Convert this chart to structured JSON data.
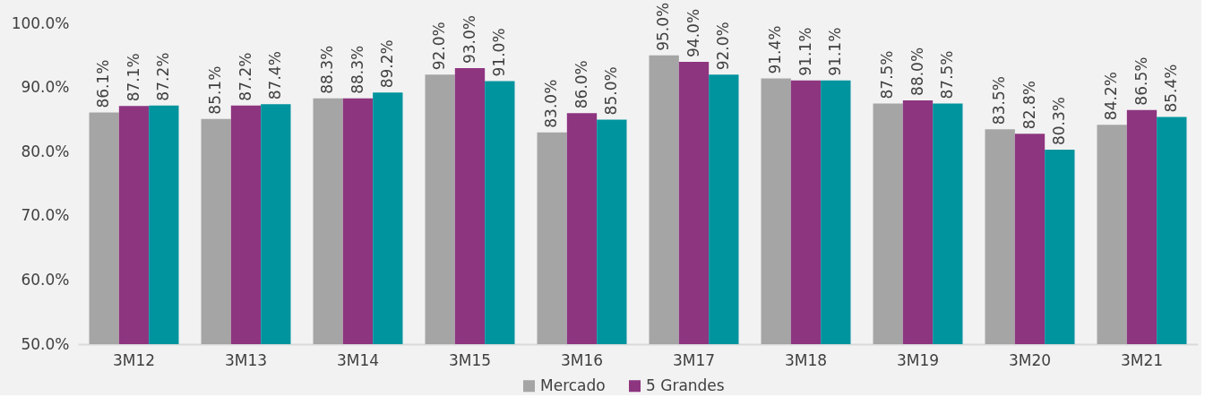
{
  "chart_data": {
    "type": "bar",
    "categories": [
      "3M12",
      "3M13",
      "3M14",
      "3M15",
      "3M16",
      "3M17",
      "3M18",
      "3M19",
      "3M20",
      "3M21"
    ],
    "series": [
      {
        "name": "Mercado",
        "color": "#a5a5a5",
        "values": [
          86.1,
          85.1,
          88.3,
          92.0,
          83.0,
          95.0,
          91.4,
          87.5,
          83.5,
          84.2
        ],
        "value_labels": [
          "86.1%",
          "85.1%",
          "88.3%",
          "92.0%",
          "83.0%",
          "95.0%",
          "91.4%",
          "87.5%",
          "83.5%",
          "84.2%"
        ]
      },
      {
        "name": "5 Grandes",
        "color": "#8e3580",
        "values": [
          87.1,
          87.2,
          88.3,
          93.0,
          86.0,
          94.0,
          91.1,
          88.0,
          82.8,
          86.5
        ],
        "value_labels": [
          "87.1%",
          "87.2%",
          "88.3%",
          "93.0%",
          "86.0%",
          "94.0%",
          "91.1%",
          "88.0%",
          "82.8%",
          "86.5%"
        ]
      },
      {
        "color": "#00949e",
        "values": [
          87.2,
          87.4,
          89.2,
          91.0,
          85.0,
          92.0,
          91.1,
          87.5,
          80.3,
          85.4
        ],
        "value_labels": [
          "87.2%",
          "87.4%",
          "89.2%",
          "91.0%",
          "85.0%",
          "92.0%",
          "91.1%",
          "87.5%",
          "80.3%",
          "85.4%"
        ]
      }
    ],
    "ylim": [
      50,
      100
    ],
    "yticks": [
      {
        "value": 50,
        "label": "50.0%"
      },
      {
        "value": 60,
        "label": "60.0%"
      },
      {
        "value": 70,
        "label": "70.0%"
      },
      {
        "value": 80,
        "label": "80.0%"
      },
      {
        "value": 90,
        "label": "90.0%"
      },
      {
        "value": 100,
        "label": "100.0%"
      }
    ],
    "grid": false,
    "legend": "bottom"
  }
}
